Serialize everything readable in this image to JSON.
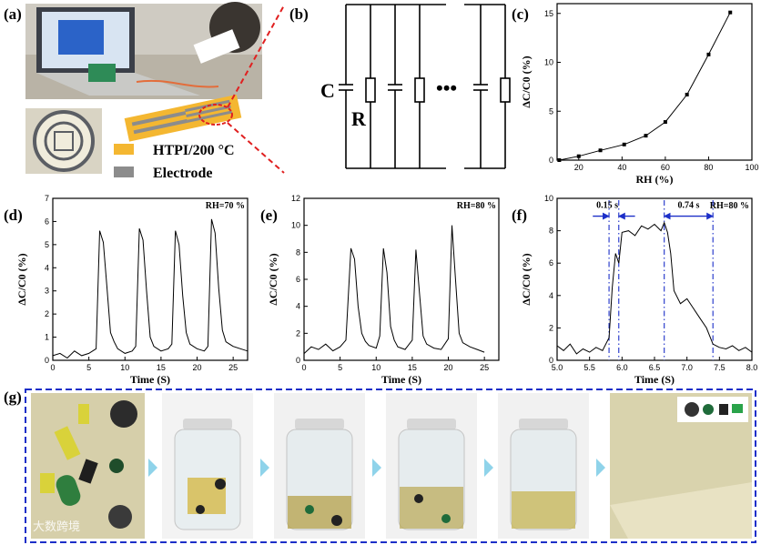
{
  "figure": {
    "panel_labels": {
      "a": "(a)",
      "b": "(b)",
      "c": "(c)",
      "d": "(d)",
      "e": "(e)",
      "f": "(f)",
      "g": "(g)"
    },
    "legend_material": "HTPI/200 °C",
    "legend_electrode": "Electrode",
    "circuit_labels": {
      "capacitor": "C",
      "resistor": "R",
      "ellipsis": "•••"
    },
    "watermark": "大数跨境",
    "colors": {
      "htpi": "#f4b731",
      "electrode": "#8c8c8c",
      "red_dash": "#e02020",
      "blue_dash": "#1c2fc8",
      "arrow": "#8fd3ea"
    }
  },
  "chart_data": [
    {
      "panel": "c",
      "type": "line",
      "xlabel": "RH (%)",
      "ylabel": "ΔC/C0 (%)",
      "xlim": [
        10,
        100
      ],
      "ylim": [
        0,
        16
      ],
      "xticks": [
        20,
        40,
        60,
        80,
        100
      ],
      "yticks": [
        0,
        5,
        10,
        15
      ],
      "x": [
        11,
        20,
        30,
        41,
        51,
        60,
        70,
        80,
        90
      ],
      "y": [
        0.0,
        0.4,
        1.0,
        1.6,
        2.5,
        3.9,
        6.7,
        10.8,
        15.1
      ]
    },
    {
      "panel": "d",
      "type": "line",
      "annotation": "RH=70 %",
      "xlabel": "Time (S)",
      "ylabel": "ΔC/C0 (%)",
      "xlim": [
        0,
        27
      ],
      "ylim": [
        0,
        7
      ],
      "xticks": [
        0,
        5,
        10,
        15,
        20,
        25
      ],
      "yticks": [
        0,
        1,
        2,
        3,
        4,
        5,
        6,
        7
      ],
      "x": [
        0,
        1,
        2,
        3,
        4,
        5,
        6.0,
        6.5,
        7.0,
        7.5,
        8.0,
        8.5,
        9,
        10,
        11,
        11.5,
        12.0,
        12.5,
        13.0,
        13.5,
        14,
        15,
        16,
        16.5,
        17.0,
        17.5,
        18.0,
        18.5,
        19,
        20,
        21,
        21.5,
        22.0,
        22.5,
        23.0,
        23.5,
        24,
        25,
        26,
        27
      ],
      "y": [
        0.2,
        0.3,
        0.1,
        0.4,
        0.2,
        0.3,
        0.5,
        5.6,
        5.1,
        3.2,
        1.2,
        0.8,
        0.5,
        0.3,
        0.4,
        0.6,
        5.7,
        5.2,
        3.0,
        1.0,
        0.6,
        0.4,
        0.5,
        0.7,
        5.6,
        5.0,
        2.8,
        1.2,
        0.7,
        0.5,
        0.4,
        0.6,
        6.1,
        5.5,
        3.1,
        1.3,
        0.8,
        0.6,
        0.5,
        0.4
      ]
    },
    {
      "panel": "e",
      "type": "line",
      "annotation": "RH=80 %",
      "xlabel": "Time (S)",
      "ylabel": "ΔC/C0 (%)",
      "xlim": [
        0,
        27
      ],
      "ylim": [
        0,
        12
      ],
      "xticks": [
        0,
        5,
        10,
        15,
        20,
        25
      ],
      "yticks": [
        0,
        2,
        4,
        6,
        8,
        10,
        12
      ],
      "x": [
        0,
        1,
        2,
        3,
        4,
        5,
        5.8,
        6.5,
        7.0,
        7.5,
        8.0,
        8.5,
        9,
        10,
        10.5,
        11.0,
        11.5,
        12.0,
        12.5,
        13,
        14,
        15.0,
        15.5,
        16.0,
        16.5,
        17,
        18,
        19,
        20.0,
        20.5,
        21.0,
        21.5,
        22,
        23,
        24,
        25
      ],
      "y": [
        0.5,
        1.0,
        0.8,
        1.2,
        0.7,
        1.0,
        1.5,
        8.3,
        7.5,
        4.0,
        2.0,
        1.4,
        1.1,
        0.9,
        1.8,
        8.3,
        6.5,
        2.5,
        1.5,
        1.0,
        0.8,
        1.5,
        8.2,
        5.0,
        1.8,
        1.2,
        0.9,
        0.8,
        1.6,
        10.0,
        6.0,
        2.0,
        1.3,
        1.0,
        0.8,
        0.6
      ]
    },
    {
      "panel": "f",
      "type": "line",
      "annotation": "RH=80 %",
      "response_label": "0.15 s",
      "recovery_label": "0.74 s",
      "xlabel": "Time (S)",
      "ylabel": "ΔC/C0 (%)",
      "xlim": [
        5.0,
        8.0
      ],
      "ylim": [
        0,
        10
      ],
      "xticks": [
        5.0,
        5.5,
        6.0,
        6.5,
        7.0,
        7.5,
        8.0
      ],
      "yticks": [
        0,
        2,
        4,
        6,
        8,
        10
      ],
      "markers_x": [
        5.8,
        5.95,
        6.65,
        7.4
      ],
      "x": [
        5.0,
        5.1,
        5.2,
        5.3,
        5.4,
        5.5,
        5.6,
        5.7,
        5.8,
        5.85,
        5.9,
        5.95,
        6.0,
        6.1,
        6.2,
        6.3,
        6.4,
        6.5,
        6.6,
        6.65,
        6.7,
        6.75,
        6.8,
        6.9,
        7.0,
        7.1,
        7.2,
        7.3,
        7.4,
        7.5,
        7.6,
        7.7,
        7.8,
        7.9,
        8.0
      ],
      "y": [
        0.9,
        0.6,
        1.0,
        0.4,
        0.7,
        0.5,
        0.8,
        0.6,
        1.4,
        4.5,
        6.6,
        6.0,
        7.9,
        8.0,
        7.7,
        8.3,
        8.1,
        8.4,
        8.0,
        8.5,
        7.9,
        6.6,
        4.3,
        3.5,
        3.8,
        3.2,
        2.6,
        2.0,
        1.0,
        0.8,
        0.7,
        0.9,
        0.6,
        0.8,
        0.5
      ]
    }
  ]
}
